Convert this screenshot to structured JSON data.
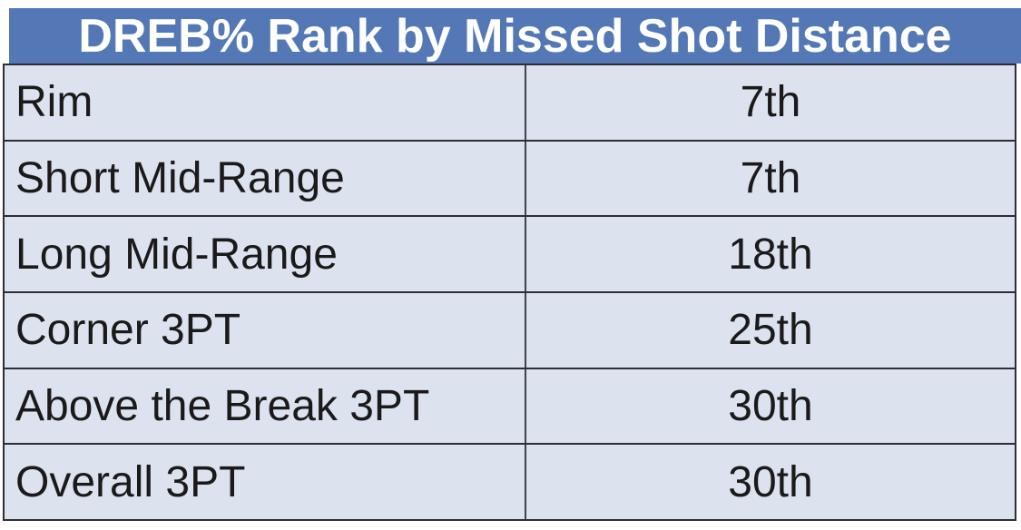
{
  "chart_data": {
    "type": "table",
    "title": "DREB% Rank by Missed Shot Distance",
    "categories": [
      "Rim",
      "Short Mid-Range",
      "Long Mid-Range",
      "Corner 3PT",
      "Above the Break 3PT",
      "Overall 3PT"
    ],
    "values": [
      "7th",
      "7th",
      "18th",
      "25th",
      "30th",
      "30th"
    ],
    "rows": [
      {
        "label": "Rim",
        "value": "7th"
      },
      {
        "label": "Short Mid-Range",
        "value": "7th"
      },
      {
        "label": "Long Mid-Range",
        "value": "18th"
      },
      {
        "label": "Corner 3PT",
        "value": "25th"
      },
      {
        "label": "Above the Break 3PT",
        "value": "30th"
      },
      {
        "label": "Overall 3PT",
        "value": "30th"
      }
    ],
    "legend_position": "none",
    "grid": true
  },
  "colors": {
    "header_bg": "#5478B5",
    "header_text": "#FFFFFF",
    "row_bg": "#DCE3EF",
    "border": "#2E2E33",
    "divider": "#3F434B",
    "body_text": "#1A1A1A"
  }
}
